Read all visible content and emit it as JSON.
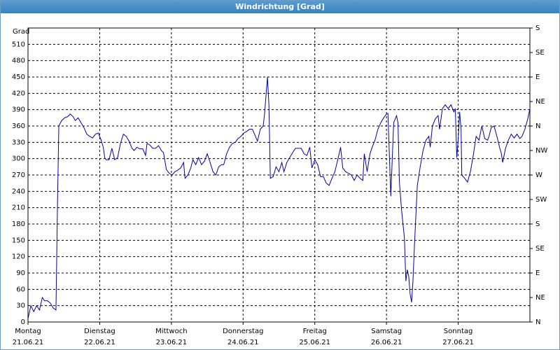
{
  "chart_data": {
    "type": "line",
    "title": "Windrichtung [Grad]",
    "ylabel": "Grad",
    "xlim": [
      0,
      7
    ],
    "xticks": [
      {
        "value": 0,
        "label": "Montag"
      },
      {
        "value": 1,
        "label": "Dienstag"
      },
      {
        "value": 2,
        "label": "Mittwoch"
      },
      {
        "value": 3,
        "label": "Donnerstag"
      },
      {
        "value": 4,
        "label": "Freitag"
      },
      {
        "value": 5,
        "label": "Samstag"
      },
      {
        "value": 6,
        "label": "Sonntag"
      }
    ],
    "xtick_dates": [
      "21.06.21",
      "22.06.21",
      "23.06.21",
      "24.06.21",
      "25.06.21",
      "26.06.21",
      "27.06.21"
    ],
    "ylim": [
      0,
      540
    ],
    "yticks": [
      0,
      30,
      60,
      90,
      120,
      150,
      180,
      210,
      240,
      270,
      300,
      330,
      360,
      390,
      420,
      450,
      480,
      510
    ],
    "y2lim": [
      0,
      540
    ],
    "y2ticks": [
      {
        "value": 0,
        "label": "N"
      },
      {
        "value": 45,
        "label": "NE"
      },
      {
        "value": 90,
        "label": "E"
      },
      {
        "value": 135,
        "label": "SE"
      },
      {
        "value": 180,
        "label": "S"
      },
      {
        "value": 225,
        "label": "SW"
      },
      {
        "value": 270,
        "label": "W"
      },
      {
        "value": 315,
        "label": "NW"
      },
      {
        "value": 360,
        "label": "N"
      },
      {
        "value": 405,
        "label": "NE"
      },
      {
        "value": 450,
        "label": "E"
      },
      {
        "value": 495,
        "label": "SE"
      },
      {
        "value": 540,
        "label": "S"
      }
    ],
    "grid": true,
    "color": "#0000b0",
    "x": [
      0,
      0.04,
      0.08,
      0.12,
      0.16,
      0.2,
      0.23,
      0.27,
      0.31,
      0.35,
      0.39,
      0.41,
      0.43,
      0.47,
      0.51,
      0.55,
      0.59,
      0.63,
      0.66,
      0.7,
      0.74,
      0.78,
      0.82,
      0.86,
      0.9,
      0.94,
      0.98,
      1.02,
      1.05,
      1.07,
      1.09,
      1.13,
      1.17,
      1.21,
      1.25,
      1.29,
      1.33,
      1.37,
      1.41,
      1.45,
      1.48,
      1.52,
      1.56,
      1.6,
      1.64,
      1.66,
      1.7,
      1.74,
      1.78,
      1.82,
      1.86,
      1.89,
      1.93,
      1.97,
      2.01,
      2.05,
      2.09,
      2.13,
      2.17,
      2.19,
      2.23,
      2.27,
      2.3,
      2.34,
      2.38,
      2.42,
      2.46,
      2.5,
      2.54,
      2.58,
      2.62,
      2.66,
      2.7,
      2.73,
      2.77,
      2.81,
      2.85,
      2.89,
      2.93,
      2.97,
      3.01,
      3.05,
      3.09,
      3.13,
      3.16,
      3.2,
      3.24,
      3.28,
      3.3,
      3.34,
      3.36,
      3.38,
      3.42,
      3.46,
      3.5,
      3.54,
      3.57,
      3.61,
      3.65,
      3.69,
      3.73,
      3.77,
      3.81,
      3.85,
      3.89,
      3.93,
      3.96,
      4.0,
      4.04,
      4.08,
      4.12,
      4.16,
      4.2,
      4.24,
      4.28,
      4.32,
      4.36,
      4.39,
      4.43,
      4.47,
      4.51,
      4.55,
      4.59,
      4.63,
      4.67,
      4.69,
      4.73,
      4.77,
      4.8,
      4.84,
      4.88,
      4.92,
      4.96,
      5.0,
      5.02,
      5.06,
      5.1,
      5.14,
      5.16,
      5.18,
      5.21,
      5.25,
      5.27,
      5.29,
      5.31,
      5.33,
      5.35,
      5.37,
      5.39,
      5.43,
      5.47,
      5.51,
      5.55,
      5.59,
      5.61,
      5.64,
      5.68,
      5.72,
      5.74,
      5.78,
      5.82,
      5.86,
      5.9,
      5.94,
      5.96,
      5.98,
      6.0,
      6.02,
      6.04,
      6.05,
      6.09,
      6.13,
      6.17,
      6.21,
      6.25,
      6.29,
      6.33,
      6.37,
      6.41,
      6.43,
      6.46,
      6.5,
      6.54,
      6.58,
      6.6,
      6.62,
      6.66,
      6.7,
      6.74,
      6.78,
      6.82,
      6.86,
      6.89,
      6.93,
      6.97,
      7.0
    ],
    "values": [
      6,
      30,
      19,
      30,
      22,
      45,
      39,
      39,
      35,
      26,
      22,
      206,
      360,
      370,
      375,
      377,
      382,
      377,
      370,
      375,
      366,
      357,
      345,
      341,
      338,
      345,
      347,
      334,
      321,
      302,
      298,
      298,
      319,
      298,
      302,
      328,
      345,
      341,
      332,
      319,
      315,
      321,
      318,
      318,
      306,
      328,
      325,
      319,
      319,
      324,
      315,
      311,
      280,
      273,
      270,
      276,
      279,
      283,
      293,
      264,
      270,
      283,
      298,
      289,
      302,
      289,
      295,
      309,
      293,
      276,
      270,
      285,
      289,
      289,
      309,
      321,
      328,
      330,
      337,
      341,
      347,
      350,
      354,
      354,
      345,
      332,
      354,
      360,
      383,
      450,
      399,
      264,
      267,
      285,
      276,
      293,
      276,
      293,
      302,
      311,
      319,
      319,
      319,
      309,
      306,
      321,
      283,
      298,
      289,
      267,
      267,
      255,
      251,
      264,
      276,
      298,
      321,
      283,
      276,
      273,
      270,
      260,
      270,
      264,
      260,
      309,
      276,
      309,
      321,
      334,
      354,
      366,
      375,
      382,
      383,
      231,
      366,
      379,
      366,
      257,
      206,
      154,
      75,
      96,
      84,
      51,
      36,
      77,
      141,
      251,
      285,
      315,
      334,
      341,
      321,
      360,
      373,
      379,
      354,
      392,
      399,
      392,
      399,
      386,
      392,
      302,
      334,
      386,
      354,
      270,
      264,
      257,
      276,
      306,
      341,
      334,
      360,
      337,
      334,
      341,
      357,
      360,
      341,
      319,
      311,
      293,
      319,
      334,
      345,
      338,
      345,
      337,
      341,
      354,
      373,
      392
    ]
  }
}
